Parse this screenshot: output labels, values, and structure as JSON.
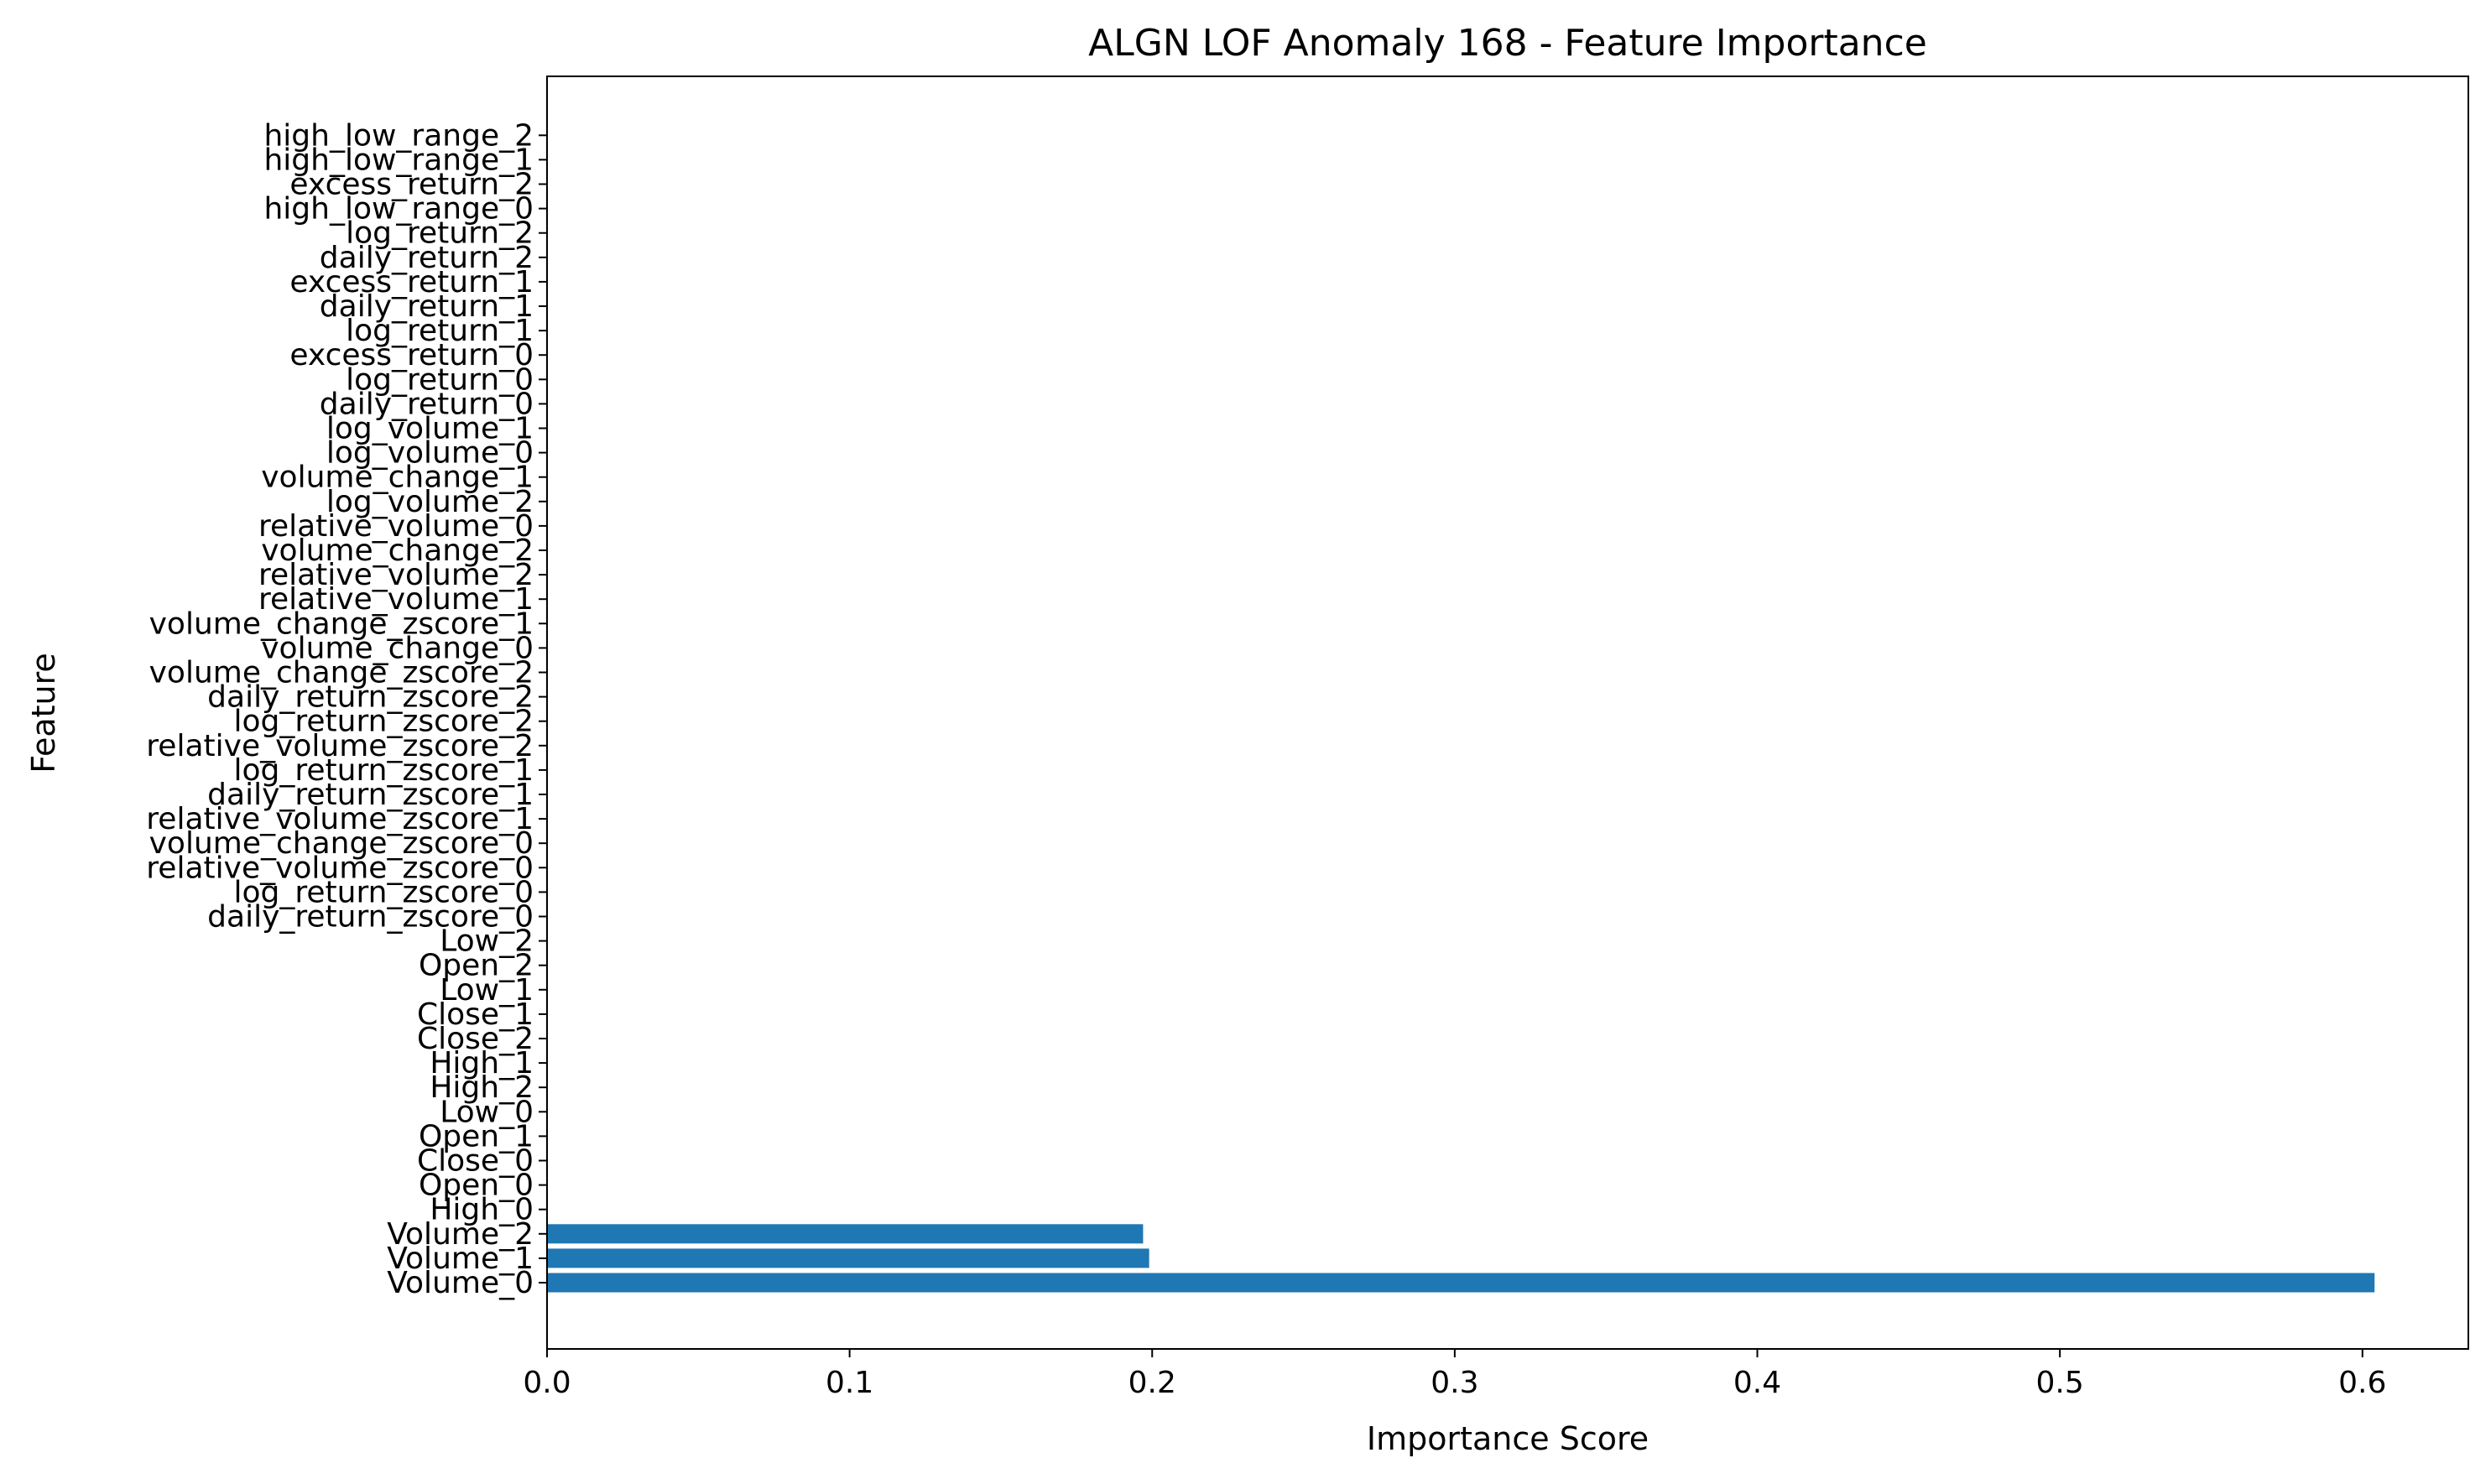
{
  "chart_data": {
    "type": "bar",
    "orientation": "horizontal",
    "title": "ALGN LOF Anomaly 168 - Feature Importance",
    "xlabel": "Importance Score",
    "ylabel": "Feature",
    "xlim": [
      0.0,
      0.635
    ],
    "xticks": [
      "0.0",
      "0.1",
      "0.2",
      "0.3",
      "0.4",
      "0.5",
      "0.6"
    ],
    "grid": false,
    "bar_color": "#1f77b4",
    "categories": [
      "Volume_0",
      "Volume_1",
      "Volume_2",
      "High_0",
      "Open_0",
      "Close_0",
      "Open_1",
      "Low_0",
      "High_2",
      "High_1",
      "Close_2",
      "Close_1",
      "Low_1",
      "Open_2",
      "Low_2",
      "daily_return_zscore_0",
      "log_return_zscore_0",
      "relative_volume_zscore_0",
      "volume_change_zscore_0",
      "relative_volume_zscore_1",
      "daily_return_zscore_1",
      "log_return_zscore_1",
      "relative_volume_zscore_2",
      "log_return_zscore_2",
      "daily_return_zscore_2",
      "volume_change_zscore_2",
      "volume_change_0",
      "volume_change_zscore_1",
      "relative_volume_1",
      "relative_volume_2",
      "volume_change_2",
      "relative_volume_0",
      "log_volume_2",
      "volume_change_1",
      "log_volume_0",
      "log_volume_1",
      "daily_return_0",
      "log_return_0",
      "excess_return_0",
      "log_return_1",
      "daily_return_1",
      "excess_return_1",
      "daily_return_2",
      "log_return_2",
      "high_low_range_0",
      "excess_return_2",
      "high_low_range_1",
      "high_low_range_2"
    ],
    "values": [
      0.604,
      0.199,
      0.197,
      0,
      0,
      0,
      0,
      0,
      0,
      0,
      0,
      0,
      0,
      0,
      0,
      0,
      0,
      0,
      0,
      0,
      0,
      0,
      0,
      0,
      0,
      0,
      0,
      0,
      0,
      0,
      0,
      0,
      0,
      0,
      0,
      0,
      0,
      0,
      0,
      0,
      0,
      0,
      0,
      0,
      0,
      0,
      0,
      0
    ]
  }
}
